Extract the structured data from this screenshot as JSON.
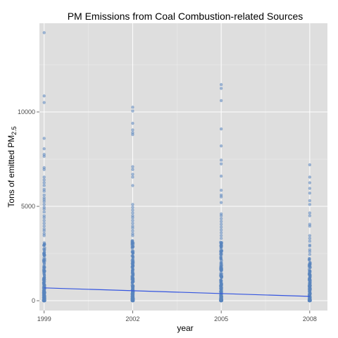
{
  "chart_data": {
    "type": "scatter",
    "title": "PM Emissions from Coal Combustion-related Sources",
    "xlabel": "year",
    "ylabel": "Tons of emitted PM",
    "ylabel_subscript": "2.5",
    "x_ticks": [
      "1999",
      "2002",
      "2005",
      "2008"
    ],
    "y_ticks": [
      "0",
      "5000",
      "10000"
    ],
    "xlim": [
      1998.84,
      2008.6
    ],
    "ylim": [
      -520,
      14700
    ],
    "grid": true,
    "background": "#dedede",
    "grid_color": "#ffffff",
    "point_color": "#5a85bd",
    "trend_color": "#3455e0",
    "series": [
      {
        "year": 1999,
        "outliers": [
          14200,
          10850,
          10500,
          8600,
          8050,
          7750,
          7650,
          7050,
          6950,
          6550,
          6400,
          6250,
          6100,
          5900,
          5800,
          5600,
          5450,
          5350,
          5250,
          5100,
          4950,
          4850,
          4700,
          4500,
          4400,
          4250,
          4100,
          3950,
          3800,
          3700,
          3550,
          3450
        ],
        "dense_max": 3300,
        "dense_count": 240
      },
      {
        "year": 2002,
        "outliers": [
          10250,
          10050,
          9400,
          9050,
          8900,
          8800,
          7100,
          6950,
          6700,
          6550,
          6100,
          5100,
          4950,
          4800,
          4650,
          4500,
          4400,
          4250,
          4100,
          3950,
          3850,
          3700,
          3550,
          3450
        ],
        "dense_max": 3250,
        "dense_count": 230
      },
      {
        "year": 2005,
        "outliers": [
          11450,
          11250,
          10600,
          9100,
          8200,
          7450,
          7250,
          6600,
          5850,
          5600,
          5500,
          5200,
          4600,
          4500,
          4350,
          4200,
          4050,
          3900,
          3750,
          3600,
          3450,
          3300
        ],
        "dense_max": 3150,
        "dense_count": 230
      },
      {
        "year": 2008,
        "outliers": [
          7200,
          6550,
          6250,
          5950,
          5700,
          5300,
          5100,
          4650,
          4500,
          4050,
          3950,
          3450,
          3300,
          3150,
          2950,
          2900,
          2700,
          2600,
          2450
        ],
        "dense_max": 2250,
        "dense_count": 190
      }
    ],
    "trend_line": {
      "x": [
        1999,
        2008
      ],
      "y": [
        680,
        230
      ]
    }
  }
}
